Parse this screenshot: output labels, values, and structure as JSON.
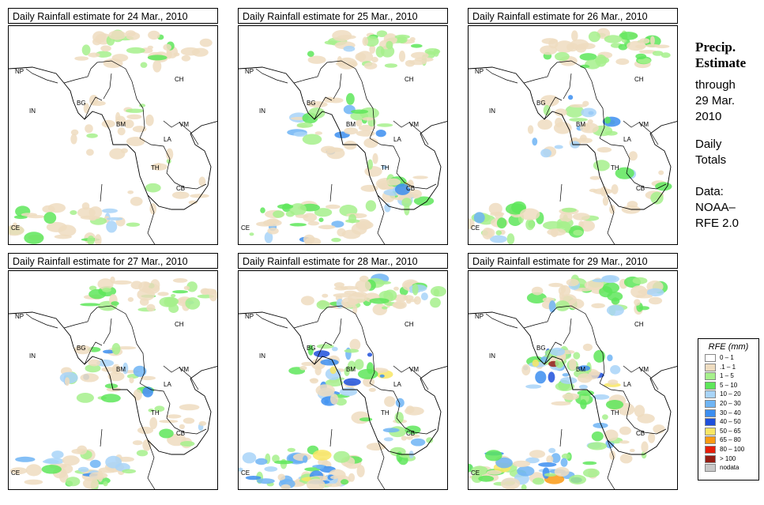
{
  "panels": [
    {
      "title": "Daily Rainfall estimate for  24 Mar., 2010",
      "rain_level": 1
    },
    {
      "title": "Daily Rainfall estimate for  25 Mar., 2010",
      "rain_level": 2
    },
    {
      "title": "Daily Rainfall estimate for  26 Mar., 2010",
      "rain_level": 2
    },
    {
      "title": "Daily Rainfall estimate for  27 Mar., 2010",
      "rain_level": 2
    },
    {
      "title": "Daily Rainfall estimate for  28 Mar., 2010",
      "rain_level": 3
    },
    {
      "title": "Daily Rainfall estimate for  29 Mar., 2010",
      "rain_level": 3
    }
  ],
  "country_labels": [
    "NP",
    "CH",
    "IN",
    "BG",
    "BM",
    "VM",
    "LA",
    "TH",
    "CB",
    "CE"
  ],
  "side": {
    "title_line1": "Precip.",
    "title_line2": "Estimate",
    "through": "through",
    "date_line1": "29 Mar.",
    "date_line2": "2010",
    "daily1": "Daily",
    "daily2": "Totals",
    "data1": "Data:",
    "data2": "NOAA–",
    "data3": "RFE 2.0"
  },
  "legend": {
    "title": "RFE (mm)",
    "items": [
      {
        "label": "0 – 1",
        "color": "#ffffff"
      },
      {
        "label": ".1 – 1",
        "color": "#eedcc0"
      },
      {
        "label": "1 – 5",
        "color": "#a6f08c"
      },
      {
        "label": "5 – 10",
        "color": "#5ee65a"
      },
      {
        "label": "10 – 20",
        "color": "#a8d4f8"
      },
      {
        "label": "20 – 30",
        "color": "#6eb4f4"
      },
      {
        "label": "30 – 40",
        "color": "#3c8ef0"
      },
      {
        "label": "40 – 50",
        "color": "#1e50dc"
      },
      {
        "label": "50 – 65",
        "color": "#f8e664"
      },
      {
        "label": "65 – 80",
        "color": "#fa9a14"
      },
      {
        "label": "80 – 100",
        "color": "#e61e0a"
      },
      {
        "label": "> 100",
        "color": "#961e14"
      },
      {
        "label": "nodata",
        "color": "#c8c8c8"
      }
    ]
  }
}
